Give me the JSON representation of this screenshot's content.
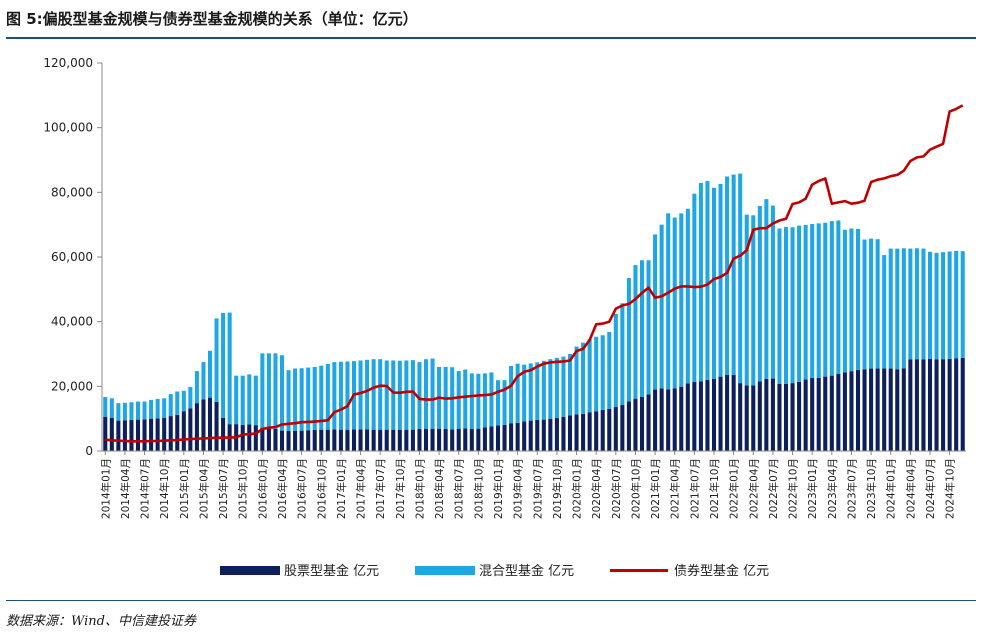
{
  "title": "图 5:偏股型基金规模与债券型基金规模的关系（单位：亿元）",
  "source": "数据来源：Wind、中信建投证券",
  "chart_data": {
    "type": "bar",
    "subtype": "stacked bar with line overlay",
    "ylim": [
      0,
      120000
    ],
    "yticks": [
      "0",
      "20,000",
      "40,000",
      "60,000",
      "80,000",
      "100,000",
      "120,000"
    ],
    "ytick_values": [
      0,
      20000,
      40000,
      60000,
      80000,
      100000,
      120000
    ],
    "x_start": "2014-01",
    "x_end": "2024-10",
    "xtick_labels": [
      "2014年01月",
      "2014年04月",
      "2014年07月",
      "2014年10月",
      "2015年01月",
      "2015年04月",
      "2015年07月",
      "2015年10月",
      "2016年01月",
      "2016年04月",
      "2016年07月",
      "2016年10月",
      "2017年01月",
      "2017年04月",
      "2017年07月",
      "2017年10月",
      "2018年01月",
      "2018年04月",
      "2018年07月",
      "2018年10月",
      "2019年01月",
      "2019年04月",
      "2019年07月",
      "2019年10月",
      "2020年01月",
      "2020年04月",
      "2020年07月",
      "2020年10月",
      "2021年01月",
      "2021年04月",
      "2021年07月",
      "2021年10月",
      "2022年01月",
      "2022年04月",
      "2022年07月",
      "2022年10月",
      "2023年01月",
      "2023年04月",
      "2023年07月",
      "2023年10月",
      "2024年01月",
      "2024年04月",
      "2024年07月",
      "2024年10月"
    ],
    "colors": {
      "equity": "#0d1f5c",
      "mixed": "#1ea7e4",
      "bond": "#c00000",
      "axis": "#888888",
      "rule": "#1f4e79"
    },
    "legend": [
      "股票型基金 亿元",
      "混合型基金 亿元",
      "债券型基金 亿元"
    ],
    "legend_position": "bottom-center",
    "grid": false,
    "series": [
      {
        "name": "股票型基金 亿元",
        "kind": "bar",
        "stack": "a",
        "values": [
          10600,
          10300,
          9400,
          9500,
          9600,
          9700,
          9800,
          10000,
          10100,
          10200,
          10800,
          11200,
          12300,
          13200,
          14800,
          16000,
          16500,
          15200,
          10200,
          8300,
          8300,
          8100,
          8200,
          8000,
          7100,
          7000,
          6800,
          6300,
          6200,
          6200,
          6300,
          6400,
          6500,
          6600,
          6600,
          6700,
          6600,
          6600,
          6700,
          6700,
          6700,
          6600,
          6600,
          6600,
          6600,
          6600,
          6600,
          6600,
          6800,
          6900,
          6900,
          6900,
          6800,
          6700,
          6900,
          7000,
          6900,
          6900,
          7300,
          7600,
          7900,
          8100,
          8600,
          8700,
          9200,
          9400,
          9600,
          9700,
          10000,
          10200,
          10600,
          11000,
          11300,
          11500,
          12000,
          12300,
          12700,
          13000,
          13600,
          14300,
          15300,
          16200,
          16700,
          17500,
          19000,
          19400,
          19100,
          19400,
          19900,
          20900,
          21400,
          21500,
          22000,
          22300,
          23000,
          23600,
          23500,
          21000,
          20300,
          20300,
          21500,
          22300,
          22400,
          20800,
          20800,
          21000,
          21400,
          22100,
          22600,
          22600,
          23000,
          23300,
          23900,
          24300,
          24700,
          25100,
          25300,
          25500,
          25500,
          25500,
          25500,
          25300,
          25600,
          28300,
          28400,
          28300,
          28500,
          28300,
          28400,
          28500,
          28700,
          28800
        ]
      },
      {
        "name": "混合型基金 亿元",
        "kind": "bar",
        "stack": "a",
        "values": [
          6100,
          6000,
          5400,
          5400,
          5500,
          5600,
          5500,
          5800,
          6000,
          6100,
          6800,
          7200,
          6300,
          6600,
          9900,
          11500,
          14500,
          25800,
          32500,
          34500,
          15000,
          15200,
          15500,
          15300,
          23100,
          23200,
          23400,
          23300,
          18800,
          19300,
          19300,
          19400,
          19500,
          19800,
          20300,
          20800,
          21000,
          21100,
          21100,
          21300,
          21500,
          21800,
          21800,
          21400,
          21400,
          21300,
          21400,
          21500,
          20700,
          21500,
          21700,
          19100,
          19200,
          19200,
          17800,
          18200,
          17100,
          17000,
          16700,
          16700,
          14000,
          13800,
          17700,
          18300,
          17500,
          17700,
          17800,
          18200,
          18400,
          18600,
          18600,
          19000,
          21000,
          22000,
          22600,
          23000,
          23100,
          23800,
          28800,
          31400,
          38200,
          41300,
          42300,
          41500,
          48000,
          50600,
          54400,
          52800,
          53600,
          54000,
          58200,
          61400,
          61500,
          59100,
          59600,
          61300,
          62000,
          64800,
          52800,
          52600,
          54300,
          55600,
          53500,
          48000,
          48500,
          48200,
          48300,
          47800,
          47600,
          47800,
          47600,
          47800,
          47400,
          44100,
          44100,
          43600,
          40100,
          40200,
          40000,
          35100,
          37100,
          37300,
          37100,
          34300,
          34300,
          34300,
          33100,
          33000,
          33100,
          33200,
          33200,
          33000
        ]
      },
      {
        "name": "债券型基金 亿元",
        "kind": "line",
        "values": [
          3500,
          3300,
          3200,
          3100,
          3000,
          3000,
          3000,
          3100,
          3100,
          3200,
          3300,
          3400,
          3600,
          3700,
          3800,
          3900,
          4000,
          4100,
          4100,
          4200,
          4200,
          5100,
          5200,
          5400,
          6800,
          7200,
          7400,
          8200,
          8400,
          8600,
          8900,
          9000,
          9100,
          9300,
          9500,
          12000,
          12800,
          13900,
          17500,
          17900,
          18600,
          19600,
          20200,
          20100,
          18100,
          18000,
          18300,
          18400,
          16100,
          15900,
          15900,
          16500,
          16200,
          16300,
          16600,
          16800,
          17000,
          17200,
          17300,
          17500,
          18300,
          19000,
          20200,
          23100,
          24500,
          25000,
          26100,
          27000,
          27400,
          27600,
          27700,
          28000,
          30900,
          31600,
          34300,
          39200,
          39400,
          40000,
          44000,
          45000,
          45500,
          47000,
          48900,
          50500,
          47400,
          47800,
          49000,
          50200,
          50900,
          50900,
          50700,
          50800,
          51500,
          53200,
          53800,
          55100,
          59500,
          60400,
          62100,
          68400,
          68900,
          68900,
          70400,
          71300,
          71800,
          76400,
          76900,
          78000,
          82400,
          83500,
          84300,
          76500,
          76900,
          77300,
          76500,
          76800,
          77400,
          83200,
          83900,
          84300,
          85000,
          85400,
          86700,
          89700,
          90800,
          91100,
          93200,
          94100,
          95000,
          105000,
          105800,
          106900
        ]
      }
    ]
  }
}
